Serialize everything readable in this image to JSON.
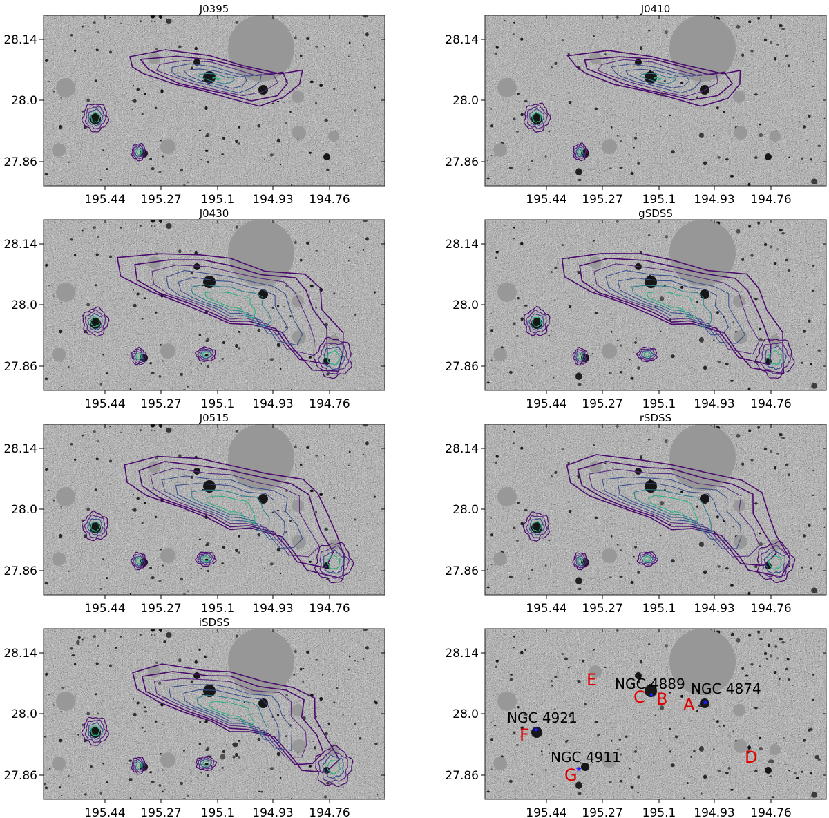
{
  "figure": {
    "x_ticks": [
      "195.44",
      "195.27",
      "195.1",
      "194.93",
      "194.76"
    ],
    "y_ticks": [
      "28.14",
      "28.0",
      "27.86"
    ],
    "panels": [
      {
        "title": "J0395",
        "contour_extent": "small"
      },
      {
        "title": "J0410",
        "contour_extent": "small"
      },
      {
        "title": "J0430",
        "contour_extent": "large"
      },
      {
        "title": "gSDSS",
        "contour_extent": "large"
      },
      {
        "title": "J0515",
        "contour_extent": "large"
      },
      {
        "title": "rSDSS",
        "contour_extent": "large"
      },
      {
        "title": "iSDSS",
        "contour_extent": "medium"
      },
      {
        "title": "",
        "contour_extent": "none"
      }
    ],
    "annotations": {
      "galaxies": [
        "NGC 4889",
        "NGC 4874",
        "NGC 4921",
        "NGC 4911"
      ],
      "letters": [
        "A",
        "B",
        "C",
        "D",
        "E",
        "F",
        "G"
      ]
    },
    "colors": {
      "contour_outer": "#4b0a6e",
      "contour_mid": "#3b4f8f",
      "contour_inner": "#2ab07f",
      "label_red": "#e00000",
      "marker_blue": "#1a1aff",
      "mask_gray": "#979797"
    }
  }
}
